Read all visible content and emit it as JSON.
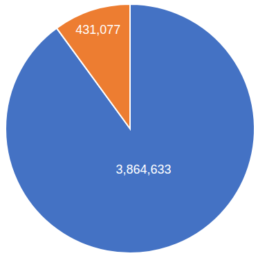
{
  "chart_data": {
    "type": "pie",
    "values": [
      3864633,
      431077
    ],
    "value_labels": [
      "3,864,633",
      "431,077"
    ],
    "colors": [
      "#4472c4",
      "#ed7d31"
    ],
    "data_labels": true
  }
}
